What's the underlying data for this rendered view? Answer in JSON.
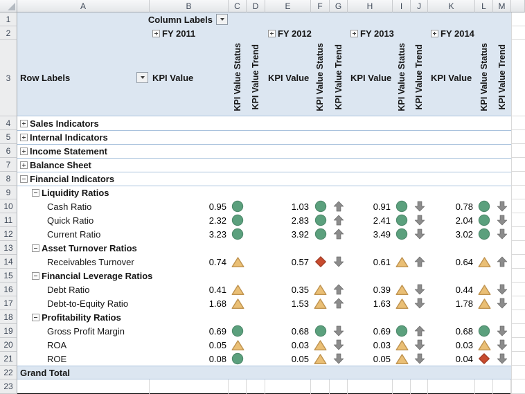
{
  "grid": {
    "column_letters": [
      "A",
      "B",
      "C",
      "D",
      "E",
      "F",
      "G",
      "H",
      "I",
      "J",
      "K",
      "L",
      "M"
    ],
    "row_numbers": [
      1,
      2,
      3,
      4,
      5,
      6,
      7,
      8,
      9,
      10,
      11,
      12,
      13,
      14,
      15,
      16,
      17,
      18,
      19,
      20,
      21,
      22,
      23
    ]
  },
  "pivot": {
    "column_labels_label": "Column Labels",
    "row_labels_label": "Row Labels",
    "kpi_value_label": "KPI Value",
    "kpi_status_label": "KPI Value Status",
    "kpi_trend_label": "KPI Value Trend",
    "years": [
      "FY 2011",
      "FY 2012",
      "FY 2013",
      "FY 2014"
    ],
    "grand_total_label": "Grand Total",
    "rows": [
      {
        "row": 4,
        "label": "Sales Indicators",
        "level": 1,
        "expander": "plus"
      },
      {
        "row": 5,
        "label": "Internal Indicators",
        "level": 1,
        "expander": "plus"
      },
      {
        "row": 6,
        "label": "Income Statement",
        "level": 1,
        "expander": "plus"
      },
      {
        "row": 7,
        "label": "Balance Sheet",
        "level": 1,
        "expander": "plus"
      },
      {
        "row": 8,
        "label": "Financial Indicators",
        "level": 1,
        "expander": "minus"
      },
      {
        "row": 9,
        "label": "Liquidity Ratios",
        "level": 2,
        "expander": "minus"
      },
      {
        "row": 10,
        "label": "Cash Ratio",
        "level": 3,
        "cells": [
          {
            "value": "0.95",
            "status": "green-circle",
            "trend": null
          },
          {
            "value": "1.03",
            "status": "green-circle",
            "trend": "up"
          },
          {
            "value": "0.91",
            "status": "green-circle",
            "trend": "down"
          },
          {
            "value": "0.78",
            "status": "green-circle",
            "trend": "down"
          }
        ]
      },
      {
        "row": 11,
        "label": "Quick Ratio",
        "level": 3,
        "cells": [
          {
            "value": "2.32",
            "status": "green-circle",
            "trend": null
          },
          {
            "value": "2.83",
            "status": "green-circle",
            "trend": "up"
          },
          {
            "value": "2.41",
            "status": "green-circle",
            "trend": "down"
          },
          {
            "value": "2.04",
            "status": "green-circle",
            "trend": "down"
          }
        ]
      },
      {
        "row": 12,
        "label": "Current Ratio",
        "level": 3,
        "cells": [
          {
            "value": "3.23",
            "status": "green-circle",
            "trend": null
          },
          {
            "value": "3.92",
            "status": "green-circle",
            "trend": "up"
          },
          {
            "value": "3.49",
            "status": "green-circle",
            "trend": "down"
          },
          {
            "value": "3.02",
            "status": "green-circle",
            "trend": "down"
          }
        ]
      },
      {
        "row": 13,
        "label": "Asset Turnover Ratios",
        "level": 2,
        "expander": "minus"
      },
      {
        "row": 14,
        "label": "Receivables Turnover",
        "level": 3,
        "cells": [
          {
            "value": "0.74",
            "status": "yellow-triangle",
            "trend": null
          },
          {
            "value": "0.57",
            "status": "red-diamond",
            "trend": "down"
          },
          {
            "value": "0.61",
            "status": "yellow-triangle",
            "trend": "up"
          },
          {
            "value": "0.64",
            "status": "yellow-triangle",
            "trend": "up"
          }
        ]
      },
      {
        "row": 15,
        "label": "Financial Leverage Ratios",
        "level": 2,
        "expander": "minus"
      },
      {
        "row": 16,
        "label": "Debt Ratio",
        "level": 3,
        "cells": [
          {
            "value": "0.41",
            "status": "yellow-triangle",
            "trend": null
          },
          {
            "value": "0.35",
            "status": "yellow-triangle",
            "trend": "up"
          },
          {
            "value": "0.39",
            "status": "yellow-triangle",
            "trend": "down"
          },
          {
            "value": "0.44",
            "status": "yellow-triangle",
            "trend": "down"
          }
        ]
      },
      {
        "row": 17,
        "label": "Debt-to-Equity Ratio",
        "level": 3,
        "cells": [
          {
            "value": "1.68",
            "status": "yellow-triangle",
            "trend": null
          },
          {
            "value": "1.53",
            "status": "yellow-triangle",
            "trend": "up"
          },
          {
            "value": "1.63",
            "status": "yellow-triangle",
            "trend": "down"
          },
          {
            "value": "1.78",
            "status": "yellow-triangle",
            "trend": "down"
          }
        ]
      },
      {
        "row": 18,
        "label": "Profitability Ratios",
        "level": 2,
        "expander": "minus"
      },
      {
        "row": 19,
        "label": "Gross Profit Margin",
        "level": 3,
        "cells": [
          {
            "value": "0.69",
            "status": "green-circle",
            "trend": null
          },
          {
            "value": "0.68",
            "status": "green-circle",
            "trend": "down"
          },
          {
            "value": "0.69",
            "status": "green-circle",
            "trend": "up"
          },
          {
            "value": "0.68",
            "status": "green-circle",
            "trend": "down"
          }
        ]
      },
      {
        "row": 20,
        "label": "ROA",
        "level": 3,
        "cells": [
          {
            "value": "0.05",
            "status": "yellow-triangle",
            "trend": null
          },
          {
            "value": "0.03",
            "status": "yellow-triangle",
            "trend": "down"
          },
          {
            "value": "0.03",
            "status": "yellow-triangle",
            "trend": "down"
          },
          {
            "value": "0.03",
            "status": "yellow-triangle",
            "trend": "down"
          }
        ]
      },
      {
        "row": 21,
        "label": "ROE",
        "level": 3,
        "cells": [
          {
            "value": "0.08",
            "status": "green-circle",
            "trend": null
          },
          {
            "value": "0.05",
            "status": "yellow-triangle",
            "trend": "down"
          },
          {
            "value": "0.05",
            "status": "yellow-triangle",
            "trend": "down"
          },
          {
            "value": "0.04",
            "status": "red-diamond",
            "trend": "down"
          }
        ]
      }
    ]
  },
  "icons": {
    "green-circle": "●",
    "yellow-triangle": "▲",
    "red-diamond": "◆",
    "up": "⬆",
    "down": "⬇",
    "filter-dropdown": "▼",
    "expand-plus": "+",
    "collapse-minus": "−"
  },
  "colors": {
    "header_fill": "#dce6f1",
    "pivot_border": "#a9c2dd",
    "status_green_fill": "#5ba07d",
    "status_green_stroke": "#4f8a6c",
    "status_yellow_fill": "#eabf75",
    "status_yellow_stroke": "#bf9350",
    "status_red_fill": "#c84b2e",
    "status_red_stroke": "#a23c24",
    "trend_arrow_fill": "#8c8c8c",
    "trend_arrow_stroke": "#6e6e6e",
    "gridline": "#d9d9d9"
  }
}
